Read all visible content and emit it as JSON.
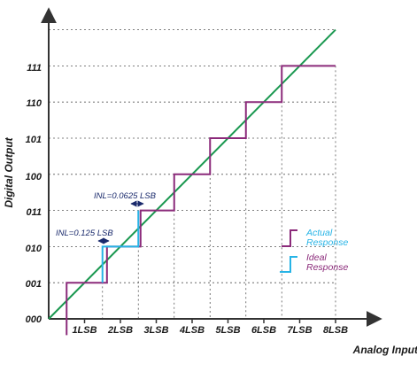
{
  "chart_data": {
    "type": "line",
    "xlabel": "Analog Input",
    "ylabel": "Digital Output",
    "xlim": [
      0,
      8.5
    ],
    "ylim": [
      0,
      8
    ],
    "x_ticks": [
      "1LSB",
      "2LSB",
      "3LSB",
      "4LSB",
      "5LSB",
      "6LSB",
      "7LSB",
      "8LSB"
    ],
    "y_ticks": [
      "000",
      "001",
      "010",
      "011",
      "100",
      "101",
      "110",
      "111"
    ],
    "ideal_line": {
      "x": [
        0,
        8
      ],
      "y": [
        0,
        8
      ],
      "color": "#1a9850"
    },
    "series": [
      {
        "name": "Ideal Response",
        "color": "#27b4e6",
        "x": [
          1.5,
          1.5,
          2.5,
          2.5
        ],
        "y": [
          1,
          2,
          2,
          3
        ]
      },
      {
        "name": "Actual Response",
        "color": "#8b2a7a",
        "x": [
          0.5,
          0.5,
          1.625,
          1.625,
          2.5625,
          2.5625,
          3.5,
          3.5,
          4.5,
          4.5,
          5.5,
          5.5,
          6.5,
          6.5,
          8
        ],
        "y": [
          -0.45,
          1,
          1,
          2,
          2,
          3,
          3,
          4,
          4,
          5,
          5,
          6,
          6,
          7,
          7
        ]
      }
    ],
    "annotations": [
      {
        "text": "INL=0.125 LSB",
        "x": 1.5,
        "y": 2,
        "text_color": "#1a2a6c"
      },
      {
        "text": "INL=0.0625 LSB",
        "x": 2.5,
        "y": 3,
        "text_color": "#1a2a6c"
      }
    ],
    "grid": "dashed-at-ticks"
  }
}
